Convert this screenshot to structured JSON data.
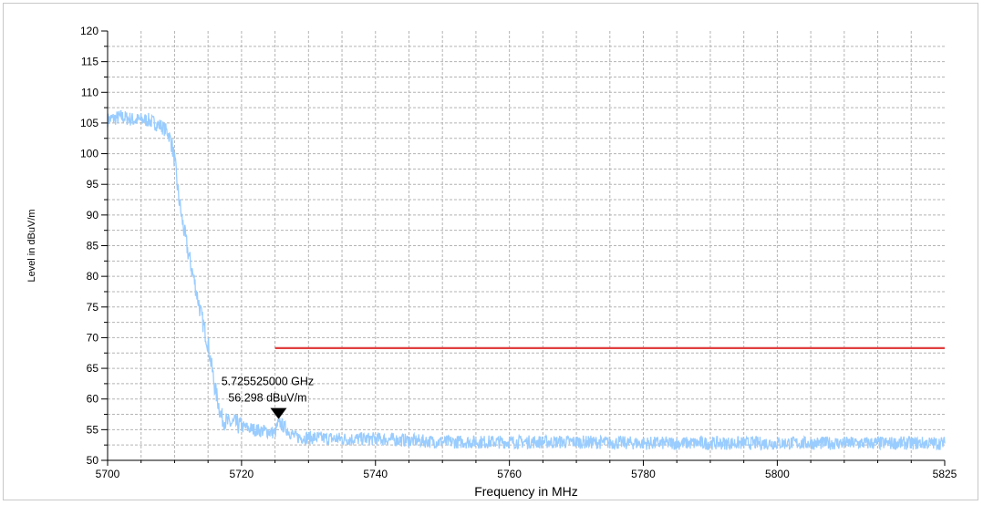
{
  "chart_data": {
    "type": "line",
    "xlabel": "Frequency in MHz",
    "ylabel": "Level in dBuV/m",
    "xlim": [
      5700,
      5825
    ],
    "ylim": [
      50,
      120
    ],
    "x_ticks": [
      5700,
      5720,
      5740,
      5760,
      5780,
      5800,
      5825
    ],
    "y_ticks": [
      50,
      55,
      60,
      65,
      70,
      75,
      80,
      85,
      90,
      95,
      100,
      105,
      110,
      115,
      120
    ],
    "grid": true,
    "series": [
      {
        "color": "#99ccff",
        "style": "noisy",
        "x": [
          5700,
          5702,
          5704,
          5706,
          5708,
          5709,
          5709.5,
          5710,
          5710.5,
          5711,
          5712,
          5713,
          5714,
          5715,
          5716,
          5717,
          5718,
          5719,
          5720,
          5722,
          5725,
          5725.525,
          5728,
          5735,
          5740,
          5750,
          5760,
          5770,
          5780,
          5790,
          5800,
          5810,
          5820,
          5825
        ],
        "values": [
          105.5,
          106,
          105.5,
          105.5,
          104.5,
          103.5,
          102,
          99,
          94,
          90,
          84,
          79,
          73.5,
          69,
          62,
          57,
          56,
          56,
          55.5,
          55,
          54.5,
          56.298,
          53.8,
          53.5,
          53.5,
          53,
          53,
          53,
          52.8,
          52.8,
          52.8,
          52.8,
          52.8,
          52.8
        ]
      },
      {
        "color": "#e04040",
        "style": "limit",
        "x": [
          5725,
          5825
        ],
        "values": [
          68.3,
          68.3
        ]
      }
    ],
    "marker": {
      "x": 5725.525,
      "y": 56.298,
      "label_freq": "5.725525000 GHz",
      "label_level": "56.298 dBuV/m"
    }
  }
}
